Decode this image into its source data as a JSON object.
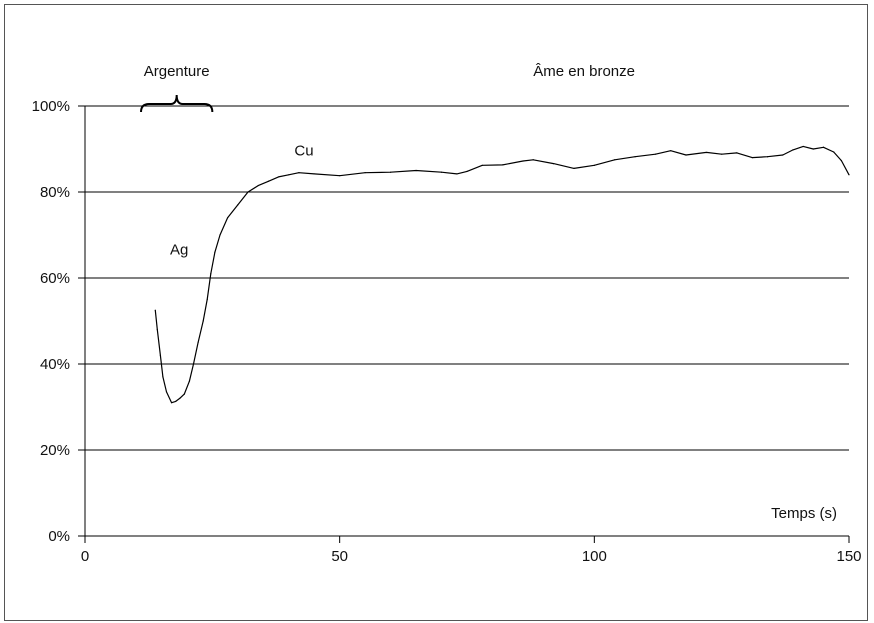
{
  "chart_data": {
    "type": "line",
    "title": "",
    "xlabel": "Temps (s)",
    "ylabel": "",
    "xlim": [
      0,
      150
    ],
    "ylim": [
      0,
      100
    ],
    "grid": "horizontal",
    "x_ticks": [
      {
        "value": 0,
        "label": "0"
      },
      {
        "value": 50,
        "label": "50"
      },
      {
        "value": 100,
        "label": "100"
      },
      {
        "value": 150,
        "label": "150"
      }
    ],
    "y_ticks": [
      {
        "value": 0,
        "label": "0%"
      },
      {
        "value": 20,
        "label": "20%"
      },
      {
        "value": 40,
        "label": "40%"
      },
      {
        "value": 60,
        "label": "60%"
      },
      {
        "value": 80,
        "label": "80%"
      },
      {
        "value": 100,
        "label": "100%"
      }
    ],
    "annotations": {
      "argenture": {
        "label": "Argenture",
        "x_from": 11,
        "x_to": 25
      },
      "ame": {
        "label": "Âme en bronze",
        "x": 98
      },
      "ag": {
        "label": "Ag",
        "x": 18.5,
        "y": 65.5
      },
      "cu": {
        "label": "Cu",
        "x": 43,
        "y": 88.5
      }
    },
    "series": [
      {
        "points": [
          [
            13.8,
            52.5
          ],
          [
            14.2,
            48
          ],
          [
            14.8,
            42
          ],
          [
            15.3,
            37
          ],
          [
            16,
            33.5
          ],
          [
            17,
            31
          ],
          [
            17.8,
            31.3
          ],
          [
            18.6,
            32
          ],
          [
            19.5,
            33
          ],
          [
            20.5,
            36
          ],
          [
            21.3,
            40
          ],
          [
            22.2,
            45
          ],
          [
            23.2,
            50
          ],
          [
            24,
            55
          ],
          [
            24.7,
            61
          ],
          [
            25.5,
            66
          ],
          [
            26.5,
            70
          ],
          [
            28,
            74
          ],
          [
            30,
            77
          ],
          [
            32,
            80
          ],
          [
            34,
            81.5
          ],
          [
            36,
            82.5
          ],
          [
            38,
            83.5
          ],
          [
            40,
            84
          ],
          [
            42,
            84.5
          ],
          [
            45,
            84.2
          ],
          [
            50,
            83.8
          ],
          [
            55,
            84.5
          ],
          [
            60,
            84.6
          ],
          [
            65,
            85
          ],
          [
            70,
            84.6
          ],
          [
            73,
            84.2
          ],
          [
            75,
            84.8
          ],
          [
            78,
            86.2
          ],
          [
            82,
            86.3
          ],
          [
            86,
            87.2
          ],
          [
            88,
            87.5
          ],
          [
            92,
            86.6
          ],
          [
            96,
            85.5
          ],
          [
            100,
            86.2
          ],
          [
            104,
            87.5
          ],
          [
            108,
            88.2
          ],
          [
            112,
            88.8
          ],
          [
            115,
            89.6
          ],
          [
            118,
            88.6
          ],
          [
            122,
            89.2
          ],
          [
            125,
            88.8
          ],
          [
            128,
            89.1
          ],
          [
            131,
            88
          ],
          [
            134,
            88.2
          ],
          [
            137,
            88.6
          ],
          [
            139,
            89.8
          ],
          [
            141,
            90.6
          ],
          [
            143,
            90
          ],
          [
            145,
            90.4
          ],
          [
            147,
            89.3
          ],
          [
            148.5,
            87.3
          ],
          [
            150,
            84
          ]
        ]
      }
    ]
  }
}
